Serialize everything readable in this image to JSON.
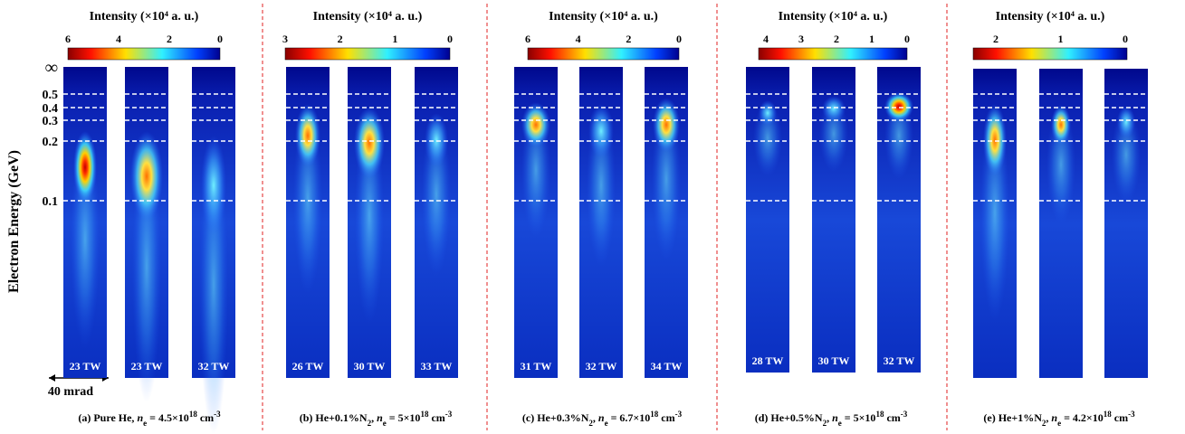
{
  "axis": {
    "label": "Electron Energy (GeV)",
    "ticks": [
      "∞",
      "0.5",
      "0.4",
      "0.3",
      "0.2",
      "0.1"
    ]
  },
  "scale_bar": "40 mrad",
  "panels": [
    {
      "colorbar_title": "Intensity (×10⁴ a. u.)",
      "colorbar_ticks": [
        6,
        4,
        2,
        0
      ],
      "strips": [
        "23 TW",
        "23 TW",
        "32 TW"
      ],
      "caption": [
        {
          "text": "(a)  Pure He, "
        },
        {
          "text": "n",
          "style": "italic"
        },
        {
          "text": "e",
          "style": "sub"
        },
        {
          "text": " = 4.5×10"
        },
        {
          "text": "18",
          "style": "sup"
        },
        {
          "text": " cm"
        },
        {
          "text": "-3",
          "style": "sup"
        }
      ]
    },
    {
      "colorbar_title": "Intensity (×10⁴ a. u.)",
      "colorbar_ticks": [
        3,
        2,
        1,
        0
      ],
      "strips": [
        "26 TW",
        "30 TW",
        "33 TW"
      ],
      "caption": [
        {
          "text": "(b) He+0.1%N"
        },
        {
          "text": "2",
          "style": "sub"
        },
        {
          "text": ", "
        },
        {
          "text": "n",
          "style": "italic"
        },
        {
          "text": "e",
          "style": "sub"
        },
        {
          "text": " = 5×10"
        },
        {
          "text": "18",
          "style": "sup"
        },
        {
          "text": " cm"
        },
        {
          "text": "-3",
          "style": "sup"
        }
      ]
    },
    {
      "colorbar_title": "Intensity (×10⁴ a. u.)",
      "colorbar_ticks": [
        6,
        4,
        2,
        0
      ],
      "strips": [
        "31 TW",
        "32 TW",
        "34 TW"
      ],
      "caption": [
        {
          "text": "(c) He+0.3%N"
        },
        {
          "text": "2",
          "style": "sub"
        },
        {
          "text": ", "
        },
        {
          "text": "n",
          "style": "italic"
        },
        {
          "text": "e",
          "style": "sub"
        },
        {
          "text": " = 6.7×10"
        },
        {
          "text": "18",
          "style": "sup"
        },
        {
          "text": " cm"
        },
        {
          "text": "-3",
          "style": "sup"
        }
      ]
    },
    {
      "colorbar_title": "Intensity (×10⁴ a. u.)",
      "colorbar_ticks": [
        4,
        3,
        2,
        1,
        0
      ],
      "strips": [
        "28 TW",
        "30 TW",
        "32 TW"
      ],
      "caption": [
        {
          "text": "(d) He+0.5%N"
        },
        {
          "text": "2",
          "style": "sub"
        },
        {
          "text": ", "
        },
        {
          "text": "n",
          "style": "italic"
        },
        {
          "text": "e",
          "style": "sub"
        },
        {
          "text": " = 5×10"
        },
        {
          "text": "18",
          "style": "sup"
        },
        {
          "text": " cm"
        },
        {
          "text": "-3",
          "style": "sup"
        }
      ]
    },
    {
      "colorbar_title": "Intensity (×10⁴ a. u.)",
      "colorbar_ticks": [
        2,
        1,
        0
      ],
      "strips": [
        "",
        "",
        ""
      ],
      "caption": [
        {
          "text": "(e) He+1%N"
        },
        {
          "text": "2",
          "style": "sub"
        },
        {
          "text": ", "
        },
        {
          "text": "n",
          "style": "italic"
        },
        {
          "text": "e",
          "style": "sub"
        },
        {
          "text": " = 4.2×10"
        },
        {
          "text": "18",
          "style": "sup"
        },
        {
          "text": " cm"
        },
        {
          "text": "-3",
          "style": "sup"
        }
      ]
    }
  ]
}
